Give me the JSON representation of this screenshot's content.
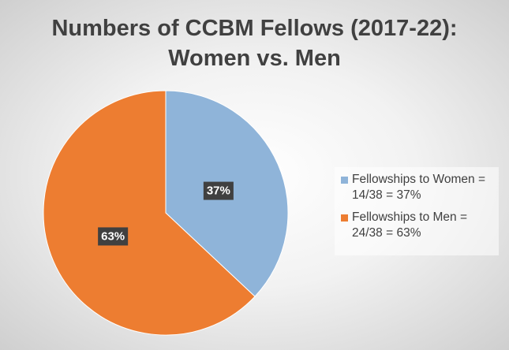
{
  "chart_data": {
    "type": "pie",
    "title": [
      "Numbers of CCBM Fellows (2017-22):",
      "Women vs. Men"
    ],
    "categories": [
      "Fellowships to Women = 14/38 = 37%",
      "Fellowships to Men = 24/38 = 63%"
    ],
    "values": [
      37,
      63
    ],
    "value_labels": [
      "37%",
      "63%"
    ],
    "colors": [
      "#8fb4d9",
      "#ed7d31"
    ],
    "legend": "right"
  }
}
